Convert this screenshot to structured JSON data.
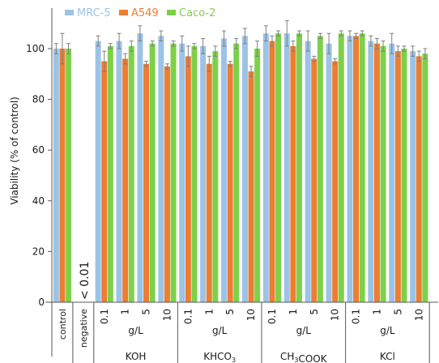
{
  "chart_data": {
    "type": "bar",
    "ylabel": "Viability (% of control)",
    "ylim": [
      0,
      110
    ],
    "yticks": [
      0,
      20,
      40,
      60,
      80,
      100
    ],
    "legend_placement": "top-left",
    "grid": false,
    "categories": [
      "control",
      "negative",
      "0.1",
      "1",
      "5",
      "10",
      "0.1",
      "1",
      "5",
      "10",
      "0.1",
      "1",
      "5",
      "10",
      "0.1",
      "1",
      "5",
      "10"
    ],
    "negative_label": "< 0.01",
    "groups": [
      {
        "name": "KOH",
        "unit": "g/L",
        "start": 2,
        "end": 5
      },
      {
        "name": "KHCO3",
        "unit": "g/L",
        "start": 6,
        "end": 9
      },
      {
        "name": "CH3COOK",
        "unit": "g/L",
        "start": 10,
        "end": 13
      },
      {
        "name": "KCl",
        "unit": "g/L",
        "start": 14,
        "end": 17
      }
    ],
    "series": [
      {
        "name": "MRC-5",
        "color": "#9cc3e6",
        "values": [
          100,
          null,
          103,
          103,
          106,
          105,
          102,
          101,
          104,
          105,
          106,
          106,
          103,
          102,
          105,
          103,
          102,
          99
        ],
        "errors": [
          2,
          null,
          2,
          3,
          3,
          2,
          3,
          3,
          3,
          3,
          3,
          5,
          4,
          4,
          2,
          2,
          4,
          2
        ]
      },
      {
        "name": "A549",
        "color": "#ed7d31",
        "values": [
          100,
          null,
          95,
          96,
          94,
          93,
          97,
          94,
          94,
          91,
          103,
          101,
          96,
          95,
          105,
          102,
          99,
          97
        ],
        "errors": [
          6,
          null,
          4,
          2,
          1,
          1,
          4,
          3,
          1,
          2,
          2,
          2,
          1,
          1,
          1,
          2,
          2,
          2
        ]
      },
      {
        "name": "Caco-2",
        "color": "#7dd149",
        "values": [
          100,
          null,
          101,
          101,
          102,
          102,
          101,
          99,
          102,
          100,
          106,
          106,
          105,
          106,
          106,
          101,
          100,
          98
        ],
        "errors": [
          2,
          null,
          1,
          2,
          1,
          1,
          1,
          2,
          2,
          3,
          1,
          1,
          1,
          1,
          1,
          2,
          1,
          2
        ]
      }
    ]
  }
}
